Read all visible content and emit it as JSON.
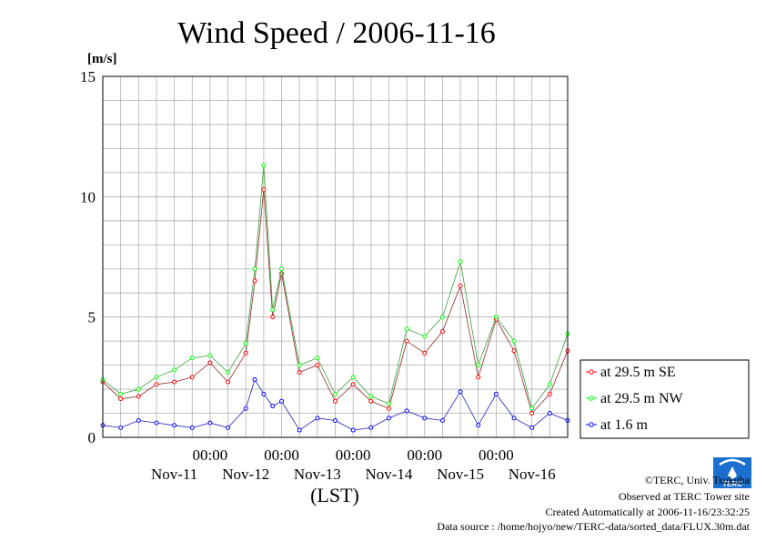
{
  "chart_data": {
    "type": "line",
    "title": "Wind Speed / 2006-11-16",
    "ylabel": "[m/s]",
    "xlabel": "(LST)",
    "ylim": [
      0,
      15
    ],
    "yticks": [
      0,
      5,
      10,
      15
    ],
    "xlim": [
      "2006-11-10T12:00",
      "2006-11-17T00:00"
    ],
    "xticks": [
      {
        "x": "2006-11-11T12:00",
        "top": "",
        "bottom": "Nov-11"
      },
      {
        "x": "2006-11-12T00:00",
        "top": "00:00",
        "bottom": ""
      },
      {
        "x": "2006-11-12T12:00",
        "top": "",
        "bottom": "Nov-12"
      },
      {
        "x": "2006-11-13T00:00",
        "top": "00:00",
        "bottom": ""
      },
      {
        "x": "2006-11-13T12:00",
        "top": "",
        "bottom": "Nov-13"
      },
      {
        "x": "2006-11-14T00:00",
        "top": "00:00",
        "bottom": ""
      },
      {
        "x": "2006-11-14T12:00",
        "top": "",
        "bottom": "Nov-14"
      },
      {
        "x": "2006-11-15T00:00",
        "top": "00:00",
        "bottom": ""
      },
      {
        "x": "2006-11-15T12:00",
        "top": "",
        "bottom": "Nov-15"
      },
      {
        "x": "2006-11-16T00:00",
        "top": "00:00",
        "bottom": ""
      },
      {
        "x": "2006-11-16T12:00",
        "top": "",
        "bottom": "Nov-16"
      }
    ],
    "grid": true,
    "legend_position": "right",
    "series": [
      {
        "name": "at 29.5 m SE",
        "color": "#ff0000",
        "x": [
          "2006-11-10T12:00",
          "2006-11-10T18:00",
          "2006-11-11T00:00",
          "2006-11-11T06:00",
          "2006-11-11T12:00",
          "2006-11-11T18:00",
          "2006-11-12T00:00",
          "2006-11-12T06:00",
          "2006-11-12T12:00",
          "2006-11-12T15:00",
          "2006-11-12T18:00",
          "2006-11-12T21:00",
          "2006-11-13T00:00",
          "2006-11-13T06:00",
          "2006-11-13T12:00",
          "2006-11-13T18:00",
          "2006-11-14T00:00",
          "2006-11-14T06:00",
          "2006-11-14T12:00",
          "2006-11-14T18:00",
          "2006-11-15T00:00",
          "2006-11-15T06:00",
          "2006-11-15T12:00",
          "2006-11-15T18:00",
          "2006-11-16T00:00",
          "2006-11-16T06:00",
          "2006-11-16T12:00",
          "2006-11-16T18:00",
          "2006-11-17T00:00"
        ],
        "values": [
          2.3,
          1.6,
          1.7,
          2.2,
          2.3,
          2.5,
          3.1,
          2.3,
          3.5,
          6.5,
          10.3,
          5.0,
          6.8,
          2.7,
          3.0,
          1.5,
          2.2,
          1.5,
          1.2,
          4.0,
          3.5,
          4.4,
          6.3,
          2.5,
          4.9,
          3.6,
          1.0,
          1.8,
          3.6
        ]
      },
      {
        "name": "at 29.5 m NW",
        "color": "#00ff00",
        "x": [
          "2006-11-10T12:00",
          "2006-11-10T18:00",
          "2006-11-11T00:00",
          "2006-11-11T06:00",
          "2006-11-11T12:00",
          "2006-11-11T18:00",
          "2006-11-12T00:00",
          "2006-11-12T06:00",
          "2006-11-12T12:00",
          "2006-11-12T15:00",
          "2006-11-12T18:00",
          "2006-11-12T21:00",
          "2006-11-13T00:00",
          "2006-11-13T06:00",
          "2006-11-13T12:00",
          "2006-11-13T18:00",
          "2006-11-14T00:00",
          "2006-11-14T06:00",
          "2006-11-14T12:00",
          "2006-11-14T18:00",
          "2006-11-15T00:00",
          "2006-11-15T06:00",
          "2006-11-15T12:00",
          "2006-11-15T18:00",
          "2006-11-16T00:00",
          "2006-11-16T06:00",
          "2006-11-16T12:00",
          "2006-11-16T18:00",
          "2006-11-17T00:00"
        ],
        "values": [
          2.4,
          1.8,
          2.0,
          2.5,
          2.8,
          3.3,
          3.4,
          2.7,
          3.9,
          7.0,
          11.3,
          5.3,
          7.0,
          3.0,
          3.3,
          1.8,
          2.5,
          1.7,
          1.4,
          4.5,
          4.2,
          5.0,
          7.3,
          3.0,
          5.0,
          4.0,
          1.2,
          2.2,
          4.3
        ]
      },
      {
        "name": "at 1.6 m",
        "color": "#0000ff",
        "x": [
          "2006-11-10T12:00",
          "2006-11-10T18:00",
          "2006-11-11T00:00",
          "2006-11-11T06:00",
          "2006-11-11T12:00",
          "2006-11-11T18:00",
          "2006-11-12T00:00",
          "2006-11-12T06:00",
          "2006-11-12T12:00",
          "2006-11-12T15:00",
          "2006-11-12T18:00",
          "2006-11-12T21:00",
          "2006-11-13T00:00",
          "2006-11-13T06:00",
          "2006-11-13T12:00",
          "2006-11-13T18:00",
          "2006-11-14T00:00",
          "2006-11-14T06:00",
          "2006-11-14T12:00",
          "2006-11-14T18:00",
          "2006-11-15T00:00",
          "2006-11-15T06:00",
          "2006-11-15T12:00",
          "2006-11-15T18:00",
          "2006-11-16T00:00",
          "2006-11-16T06:00",
          "2006-11-16T12:00",
          "2006-11-16T18:00",
          "2006-11-17T00:00"
        ],
        "values": [
          0.5,
          0.4,
          0.7,
          0.6,
          0.5,
          0.4,
          0.6,
          0.4,
          1.2,
          2.4,
          1.8,
          1.3,
          1.5,
          0.3,
          0.8,
          0.7,
          0.3,
          0.4,
          0.8,
          1.1,
          0.8,
          0.7,
          1.9,
          0.5,
          1.8,
          0.8,
          0.4,
          1.0,
          0.7
        ]
      }
    ]
  },
  "credits": {
    "copyright": "©TERC, Univ. Tsukuba",
    "observed": "Observed at TERC Tower site",
    "created": "Created Automatically at 2006-11-16/23:32:25",
    "source": "Data source : /home/hojyo/new/TERC-data/sorted_data/FLUX.30m.dat",
    "logo_text": "TERC"
  }
}
